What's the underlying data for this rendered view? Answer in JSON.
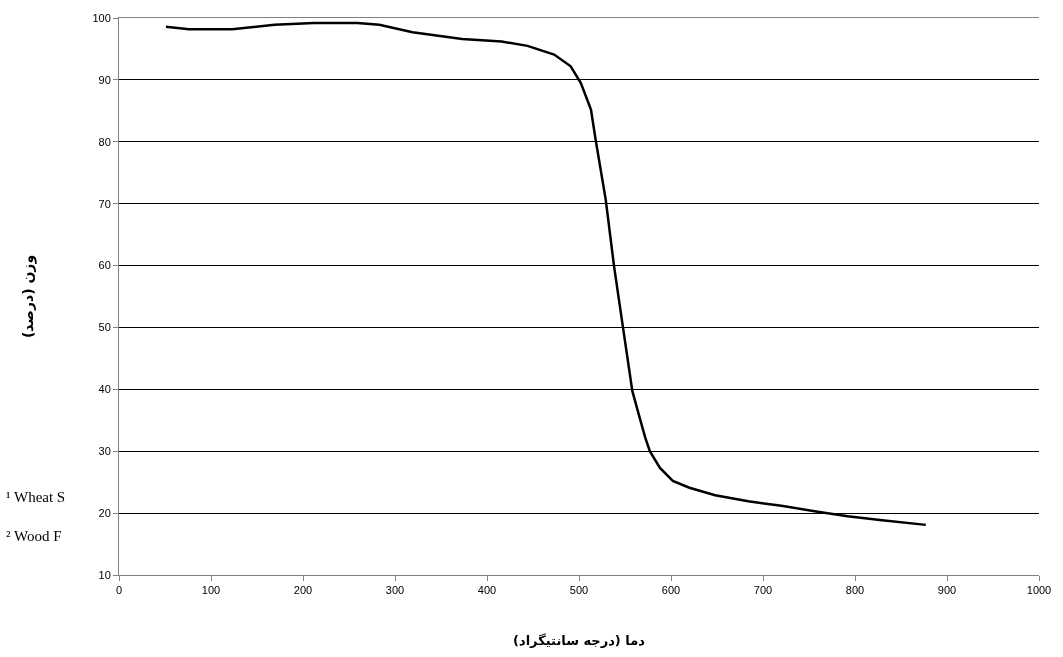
{
  "chart_data": {
    "type": "line",
    "xlabel": "دما (درجه سانتیگراد)",
    "ylabel": "وزن (درصد)",
    "annotations": [
      "¹ Wheat S",
      "² Wood F"
    ],
    "series": [
      {
        "color": "#000000",
        "x": [
          51,
          76,
          123,
          169,
          212,
          259,
          283,
          319,
          373,
          416,
          444,
          473,
          491,
          502,
          513,
          518,
          529,
          538,
          548,
          558,
          566,
          572,
          577,
          588,
          602,
          620,
          648,
          684,
          720,
          756,
          792,
          827,
          877
        ],
        "values": [
          98.6,
          98.2,
          98.2,
          98.9,
          99.2,
          99.2,
          98.9,
          97.7,
          96.6,
          96.2,
          95.5,
          94.1,
          92.2,
          89.5,
          85.2,
          80.4,
          70.7,
          60.0,
          49.8,
          39.7,
          35.4,
          32.2,
          30.0,
          27.3,
          25.2,
          24.1,
          22.9,
          21.9,
          21.2,
          20.3,
          19.5,
          18.9,
          18.1
        ]
      }
    ],
    "xlim": [
      0,
      1000
    ],
    "xticks": [
      0,
      100,
      200,
      300,
      400,
      500,
      600,
      700,
      800,
      900,
      1000
    ],
    "ylim": [
      10,
      100
    ],
    "yticks": [
      10,
      20,
      30,
      40,
      50,
      60,
      70,
      80,
      90,
      100
    ],
    "grid": "y",
    "marker": "none",
    "line_style": "solid"
  }
}
